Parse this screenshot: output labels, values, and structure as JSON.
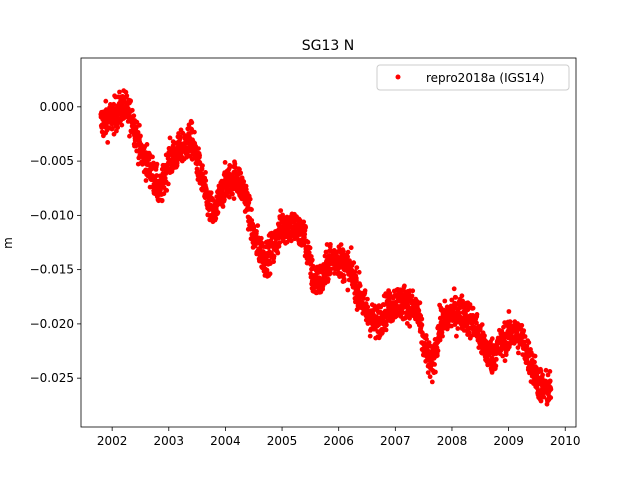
{
  "chart_data": {
    "type": "scatter",
    "title": "SG13 N",
    "xlabel": "",
    "ylabel": "m",
    "xlim": [
      2001.45,
      2010.19
    ],
    "ylim": [
      -0.0295,
      0.0045
    ],
    "xticks": [
      2002,
      2003,
      2004,
      2005,
      2006,
      2007,
      2008,
      2009,
      2010
    ],
    "xtick_labels": [
      "2002",
      "2003",
      "2004",
      "2005",
      "2006",
      "2007",
      "2008",
      "2009",
      "2010"
    ],
    "yticks": [
      0.0,
      -0.005,
      -0.01,
      -0.015,
      -0.02,
      -0.025
    ],
    "ytick_labels": [
      "0.000",
      "−0.005",
      "−0.010",
      "−0.015",
      "−0.020",
      "−0.025"
    ],
    "grid": false,
    "legend_position": "top-right",
    "series": [
      {
        "name": "repro2018a (IGS14)",
        "color": "#ff0000",
        "marker": "point",
        "scatter_sd": 0.0008,
        "x": [
          2001.8,
          2002.0,
          2002.2,
          2002.35,
          2002.5,
          2002.7,
          2002.85,
          2003.0,
          2003.2,
          2003.4,
          2003.55,
          2003.7,
          2003.8,
          2004.0,
          2004.2,
          2004.35,
          2004.5,
          2004.7,
          2004.85,
          2005.0,
          2005.2,
          2005.4,
          2005.55,
          2005.7,
          2005.85,
          2006.0,
          2006.2,
          2006.35,
          2006.5,
          2006.65,
          2006.8,
          2007.0,
          2007.2,
          2007.4,
          2007.5,
          2007.65,
          2007.8,
          2008.0,
          2008.2,
          2008.4,
          2008.55,
          2008.7,
          2008.85,
          2009.0,
          2009.2,
          2009.35,
          2009.5,
          2009.6,
          2009.75
        ],
        "y": [
          -0.0015,
          -0.001,
          0.0,
          -0.001,
          -0.004,
          -0.006,
          -0.008,
          -0.005,
          -0.004,
          -0.003,
          -0.006,
          -0.009,
          -0.01,
          -0.007,
          -0.0065,
          -0.008,
          -0.012,
          -0.014,
          -0.013,
          -0.011,
          -0.011,
          -0.012,
          -0.016,
          -0.016,
          -0.014,
          -0.014,
          -0.015,
          -0.017,
          -0.019,
          -0.02,
          -0.019,
          -0.018,
          -0.018,
          -0.019,
          -0.022,
          -0.024,
          -0.02,
          -0.019,
          -0.019,
          -0.02,
          -0.022,
          -0.023,
          -0.022,
          -0.021,
          -0.021,
          -0.023,
          -0.025,
          -0.026,
          -0.026
        ]
      }
    ]
  }
}
